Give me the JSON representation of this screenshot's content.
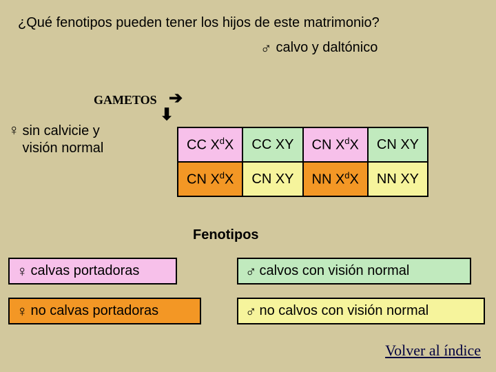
{
  "question": "¿Qué fenotipos pueden tener los hijos de este matrimonio?",
  "maleParent": {
    "symbol": "♂",
    "text": "calvo y daltónico"
  },
  "gametosLabel": "GAMETOS",
  "arrowRight": "➔",
  "arrowDown": "⬇",
  "femaleParent": {
    "symbol": "♀",
    "line1": "sin calvicie y",
    "line2": "visión normal"
  },
  "punnett": {
    "colors": {
      "pink": "#f7c0ea",
      "green": "#c1eabe",
      "orange": "#f39725",
      "yellow": "#f6f49c"
    },
    "cells": [
      [
        {
          "pre": "CC X",
          "sup": "d",
          "post": "X",
          "class": "pink"
        },
        {
          "pre": "CC XY",
          "sup": "",
          "post": "",
          "class": "green"
        },
        {
          "pre": "CN X",
          "sup": "d",
          "post": "X",
          "class": "pink"
        },
        {
          "pre": "CN XY",
          "sup": "",
          "post": "",
          "class": "green"
        }
      ],
      [
        {
          "pre": "CN X",
          "sup": "d",
          "post": "X",
          "class": "orange"
        },
        {
          "pre": "CN XY",
          "sup": "",
          "post": "",
          "class": "yellow"
        },
        {
          "pre": "NN X",
          "sup": "d",
          "post": "X",
          "class": "orange"
        },
        {
          "pre": "NN XY",
          "sup": "",
          "post": "",
          "class": "yellow"
        }
      ]
    ]
  },
  "fenotiposTitle": "Fenotipos",
  "pheno": {
    "p1": {
      "symbol": "♀",
      "text": "calvas portadoras",
      "class": "pink"
    },
    "p2": {
      "symbol": "♂",
      "text": "calvos con visión normal",
      "class": "green"
    },
    "p3": {
      "symbol": "♀",
      "text": "no calvas portadoras",
      "class": "orange"
    },
    "p4": {
      "symbol": "♂",
      "text": "no calvos con visión normal",
      "class": "yellow"
    }
  },
  "indexLink": "Volver al índice"
}
